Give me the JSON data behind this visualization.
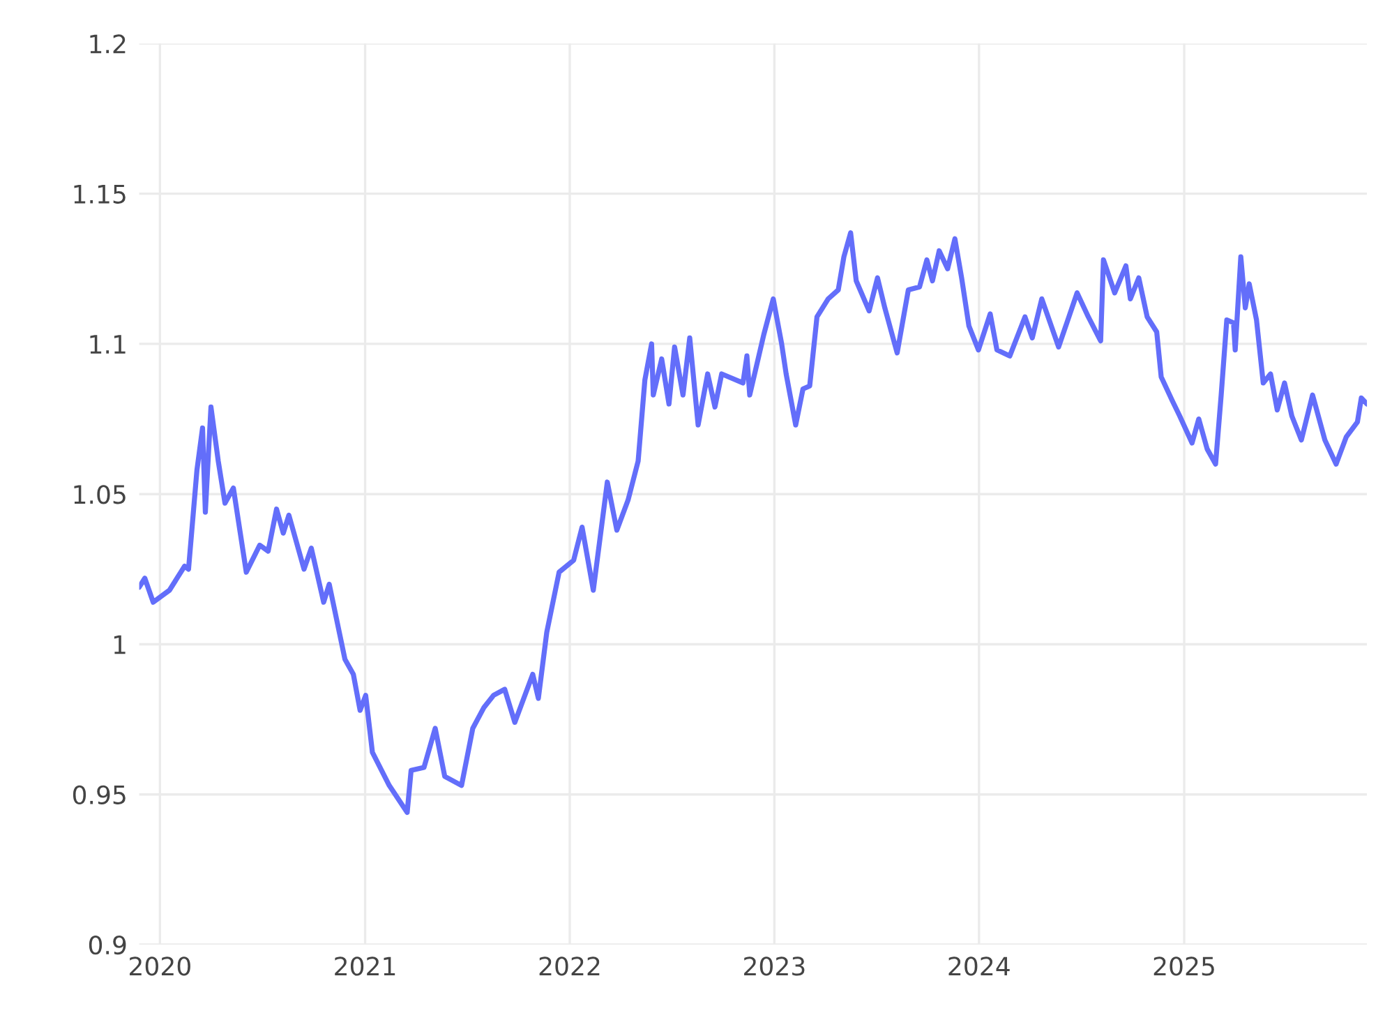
{
  "chart_data": {
    "type": "line",
    "color": "#636efa",
    "grid": true,
    "legend": false,
    "xlim": [
      "2019-11-25",
      "2025-11-23"
    ],
    "ylim": [
      0.9,
      1.2
    ],
    "xticks": [
      {
        "value": "2020-01-01",
        "label": "2020"
      },
      {
        "value": "2021-01-01",
        "label": "2021"
      },
      {
        "value": "2022-01-01",
        "label": "2022"
      },
      {
        "value": "2023-01-01",
        "label": "2023"
      },
      {
        "value": "2024-01-01",
        "label": "2024"
      },
      {
        "value": "2025-01-01",
        "label": "2025"
      }
    ],
    "yticks": [
      0.9,
      0.95,
      1,
      1.05,
      1.1,
      1.15,
      1.2
    ],
    "x": [
      "2019-11-25",
      "2019-12-05",
      "2019-12-20",
      "2020-01-18",
      "2020-02-14",
      "2020-02-21",
      "2020-02-26",
      "2020-03-07",
      "2020-03-17",
      "2020-03-22",
      "2020-04-01",
      "2020-04-14",
      "2020-04-26",
      "2020-05-11",
      "2020-06-03",
      "2020-06-27",
      "2020-07-12",
      "2020-07-27",
      "2020-08-08",
      "2020-08-18",
      "2020-09-14",
      "2020-09-27",
      "2020-10-19",
      "2020-10-29",
      "2020-11-26",
      "2020-12-11",
      "2020-12-23",
      "2021-01-02",
      "2021-01-14",
      "2021-02-13",
      "2021-03-17",
      "2021-03-24",
      "2021-04-16",
      "2021-05-06",
      "2021-05-23",
      "2021-06-22",
      "2021-07-12",
      "2021-08-01",
      "2021-08-18",
      "2021-09-07",
      "2021-09-25",
      "2021-10-27",
      "2021-11-06",
      "2021-11-21",
      "2021-12-13",
      "2022-01-08",
      "2022-01-23",
      "2022-02-12",
      "2022-03-09",
      "2022-03-26",
      "2022-04-15",
      "2022-05-03",
      "2022-05-15",
      "2022-05-27",
      "2022-05-30",
      "2022-06-14",
      "2022-06-27",
      "2022-07-07",
      "2022-07-22",
      "2022-08-03",
      "2022-08-18",
      "2022-09-04",
      "2022-09-17",
      "2022-09-29",
      "2022-11-06",
      "2022-11-13",
      "2022-11-18",
      "2022-12-13",
      "2022-12-30",
      "2023-01-14",
      "2023-01-22",
      "2023-02-08",
      "2023-02-21",
      "2023-03-05",
      "2023-03-18",
      "2023-04-07",
      "2023-04-25",
      "2023-05-05",
      "2023-05-17",
      "2023-05-27",
      "2023-06-19",
      "2023-07-04",
      "2023-07-17",
      "2023-08-08",
      "2023-08-28",
      "2023-09-17",
      "2023-09-30",
      "2023-10-10",
      "2023-10-22",
      "2023-11-06",
      "2023-11-19",
      "2023-12-01",
      "2023-12-14",
      "2023-12-31",
      "2024-01-21",
      "2024-02-02",
      "2024-02-25",
      "2024-03-23",
      "2024-04-05",
      "2024-04-22",
      "2024-05-22",
      "2024-06-24",
      "2024-07-14",
      "2024-08-05",
      "2024-08-10",
      "2024-08-30",
      "2024-09-19",
      "2024-09-27",
      "2024-10-12",
      "2024-10-27",
      "2024-11-13",
      "2024-11-21",
      "2024-12-11",
      "2024-12-24",
      "2025-01-15",
      "2025-01-27",
      "2025-02-11",
      "2025-02-26",
      "2025-03-08",
      "2025-03-18",
      "2025-03-30",
      "2025-04-02",
      "2025-04-12",
      "2025-04-20",
      "2025-04-27",
      "2025-05-10",
      "2025-05-22",
      "2025-06-04",
      "2025-06-16",
      "2025-06-29",
      "2025-07-12",
      "2025-07-29",
      "2025-08-18",
      "2025-09-09",
      "2025-09-29",
      "2025-10-17",
      "2025-11-06",
      "2025-11-13",
      "2025-11-23"
    ],
    "values": [
      1.019,
      1.022,
      1.014,
      1.018,
      1.026,
      1.025,
      1.036,
      1.058,
      1.072,
      1.044,
      1.079,
      1.061,
      1.047,
      1.052,
      1.024,
      1.033,
      1.031,
      1.045,
      1.037,
      1.043,
      1.025,
      1.032,
      1.014,
      1.02,
      0.995,
      0.99,
      0.978,
      0.983,
      0.964,
      0.953,
      0.944,
      0.958,
      0.959,
      0.972,
      0.956,
      0.953,
      0.972,
      0.979,
      0.983,
      0.985,
      0.974,
      0.99,
      0.982,
      1.004,
      1.024,
      1.028,
      1.039,
      1.018,
      1.054,
      1.038,
      1.048,
      1.061,
      1.088,
      1.1,
      1.083,
      1.095,
      1.08,
      1.099,
      1.083,
      1.102,
      1.073,
      1.09,
      1.079,
      1.09,
      1.087,
      1.096,
      1.083,
      1.103,
      1.115,
      1.1,
      1.09,
      1.073,
      1.085,
      1.086,
      1.109,
      1.115,
      1.118,
      1.129,
      1.137,
      1.121,
      1.111,
      1.122,
      1.112,
      1.097,
      1.118,
      1.119,
      1.128,
      1.121,
      1.131,
      1.125,
      1.135,
      1.122,
      1.106,
      1.098,
      1.11,
      1.098,
      1.096,
      1.109,
      1.102,
      1.115,
      1.099,
      1.117,
      1.109,
      1.101,
      1.128,
      1.117,
      1.126,
      1.115,
      1.122,
      1.109,
      1.104,
      1.089,
      1.081,
      1.076,
      1.067,
      1.075,
      1.065,
      1.06,
      1.083,
      1.108,
      1.107,
      1.098,
      1.129,
      1.112,
      1.12,
      1.108,
      1.087,
      1.09,
      1.078,
      1.087,
      1.076,
      1.068,
      1.083,
      1.068,
      1.06,
      1.069,
      1.074,
      1.082,
      1.08
    ]
  }
}
